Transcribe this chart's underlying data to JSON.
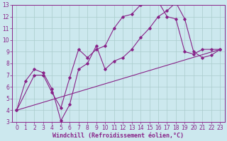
{
  "xlabel": "Windchill (Refroidissement éolien,°C)",
  "xlim": [
    -0.5,
    23.5
  ],
  "ylim": [
    3,
    13
  ],
  "xticks": [
    0,
    1,
    2,
    3,
    4,
    5,
    6,
    7,
    8,
    9,
    10,
    11,
    12,
    13,
    14,
    15,
    16,
    17,
    18,
    19,
    20,
    21,
    22,
    23
  ],
  "yticks": [
    3,
    4,
    5,
    6,
    7,
    8,
    9,
    10,
    11,
    12,
    13
  ],
  "line_color": "#882288",
  "bg_color": "#cce8ee",
  "grid_color": "#aacccc",
  "line1_x": [
    0,
    1,
    2,
    3,
    4,
    5,
    6,
    7,
    8,
    9,
    10,
    11,
    12,
    13,
    14,
    15,
    16,
    17,
    18,
    19,
    20,
    21,
    22,
    23
  ],
  "line1_y": [
    4.0,
    6.5,
    7.5,
    7.2,
    5.8,
    3.1,
    4.5,
    7.5,
    8.0,
    9.5,
    7.5,
    8.2,
    8.5,
    9.2,
    10.2,
    11.0,
    12.0,
    12.5,
    13.2,
    11.8,
    9.0,
    8.5,
    8.7,
    9.2
  ],
  "line2_x": [
    0,
    2,
    3,
    4,
    5,
    6,
    7,
    8,
    9,
    10,
    11,
    12,
    13,
    14,
    15,
    16,
    17,
    18,
    19,
    20,
    21,
    22,
    23
  ],
  "line2_y": [
    4.0,
    7.0,
    7.0,
    5.5,
    4.2,
    6.8,
    9.2,
    8.5,
    9.2,
    9.5,
    11.0,
    12.0,
    12.2,
    13.0,
    13.2,
    13.3,
    12.0,
    11.8,
    9.0,
    8.8,
    9.2,
    9.2,
    9.2
  ],
  "line3_x": [
    0,
    23
  ],
  "line3_y": [
    4.0,
    9.2
  ],
  "font_size": 6,
  "tick_font_size": 5.5
}
